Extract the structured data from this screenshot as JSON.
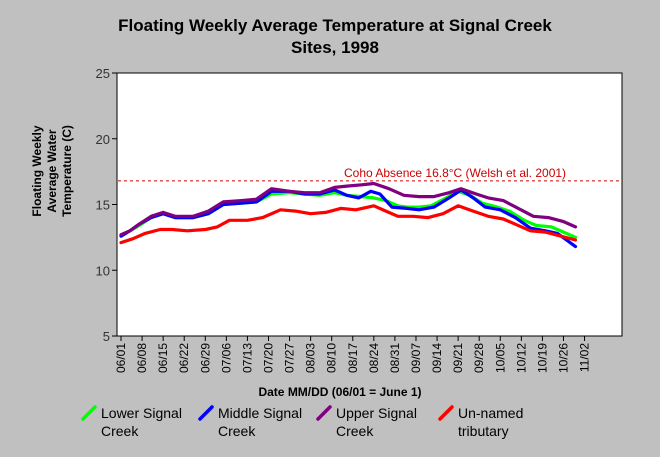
{
  "chart_data": {
    "type": "line",
    "title_lines": [
      "Floating Weekly Average Temperature at Signal Creek",
      "Sites, 1998"
    ],
    "xlabel": "Date MM/DD (06/01 = June 1)",
    "ylabel_lines": [
      "Floating Weekly",
      "Average Water",
      "Temperature (C)"
    ],
    "ylim": [
      5,
      25
    ],
    "yticks": [
      5,
      10,
      15,
      20,
      25
    ],
    "xtick_labels": [
      "06/01",
      "06/08",
      "06/15",
      "06/22",
      "06/29",
      "07/06",
      "07/13",
      "07/20",
      "07/27",
      "08/03",
      "08/10",
      "08/17",
      "08/24",
      "08/31",
      "09/07",
      "09/14",
      "09/21",
      "09/28",
      "10/05",
      "10/12",
      "10/19",
      "10/26",
      "11/02"
    ],
    "x_unit": "days since 06/01",
    "reference_line": {
      "value": 16.8,
      "label": "Coho Absence 16.8°C (Welsh et al. 2001)",
      "color": "#cc0000"
    },
    "series": [
      {
        "name": "Lower Signal Creek",
        "color": "#00ff00",
        "points": [
          [
            0,
            12.6
          ],
          [
            3,
            13.0
          ],
          [
            6,
            13.4
          ],
          [
            10,
            14.0
          ],
          [
            14,
            14.3
          ],
          [
            18,
            14.0
          ],
          [
            24,
            14.0
          ],
          [
            29,
            14.3
          ],
          [
            34,
            15.0
          ],
          [
            40,
            15.1
          ],
          [
            45,
            15.2
          ],
          [
            50,
            15.8
          ],
          [
            56,
            15.9
          ],
          [
            61,
            15.8
          ],
          [
            66,
            15.7
          ],
          [
            71,
            15.9
          ],
          [
            75,
            15.7
          ],
          [
            80,
            15.6
          ],
          [
            84,
            15.5
          ],
          [
            88,
            15.3
          ],
          [
            92,
            14.9
          ],
          [
            95,
            14.8
          ],
          [
            99,
            14.8
          ],
          [
            103,
            14.9
          ],
          [
            108,
            15.5
          ],
          [
            112,
            16.0
          ],
          [
            116,
            15.7
          ],
          [
            120,
            15.1
          ],
          [
            125,
            14.8
          ],
          [
            129,
            14.5
          ],
          [
            134,
            13.8
          ],
          [
            138,
            13.4
          ],
          [
            143,
            13.3
          ],
          [
            147,
            12.9
          ],
          [
            151,
            12.5
          ]
        ]
      },
      {
        "name": "Middle Signal Creek",
        "color": "#0000ff",
        "points": [
          [
            0,
            12.6
          ],
          [
            3,
            13.0
          ],
          [
            6,
            13.5
          ],
          [
            10,
            14.0
          ],
          [
            14,
            14.3
          ],
          [
            18,
            14.0
          ],
          [
            24,
            14.0
          ],
          [
            29,
            14.3
          ],
          [
            34,
            15.0
          ],
          [
            40,
            15.1
          ],
          [
            45,
            15.2
          ],
          [
            50,
            16.0
          ],
          [
            56,
            16.0
          ],
          [
            61,
            15.8
          ],
          [
            66,
            15.8
          ],
          [
            71,
            16.1
          ],
          [
            75,
            15.7
          ],
          [
            79,
            15.5
          ],
          [
            83,
            16.0
          ],
          [
            86,
            15.8
          ],
          [
            90,
            14.8
          ],
          [
            95,
            14.7
          ],
          [
            99,
            14.6
          ],
          [
            104,
            14.8
          ],
          [
            109,
            15.5
          ],
          [
            113,
            16.1
          ],
          [
            117,
            15.5
          ],
          [
            121,
            14.8
          ],
          [
            126,
            14.6
          ],
          [
            131,
            14.0
          ],
          [
            136,
            13.2
          ],
          [
            141,
            13.0
          ],
          [
            145,
            12.8
          ],
          [
            148,
            12.3
          ],
          [
            151,
            11.8
          ]
        ]
      },
      {
        "name": "Upper Signal Creek",
        "color": "#800080",
        "points": [
          [
            0,
            12.7
          ],
          [
            3,
            13.0
          ],
          [
            6,
            13.5
          ],
          [
            10,
            14.1
          ],
          [
            14,
            14.4
          ],
          [
            18,
            14.1
          ],
          [
            24,
            14.1
          ],
          [
            29,
            14.5
          ],
          [
            34,
            15.2
          ],
          [
            40,
            15.3
          ],
          [
            45,
            15.4
          ],
          [
            50,
            16.2
          ],
          [
            56,
            16.0
          ],
          [
            61,
            15.9
          ],
          [
            66,
            15.9
          ],
          [
            71,
            16.3
          ],
          [
            75,
            16.4
          ],
          [
            80,
            16.5
          ],
          [
            84,
            16.6
          ],
          [
            89,
            16.2
          ],
          [
            94,
            15.7
          ],
          [
            99,
            15.6
          ],
          [
            104,
            15.6
          ],
          [
            109,
            15.9
          ],
          [
            113,
            16.2
          ],
          [
            118,
            15.8
          ],
          [
            122,
            15.5
          ],
          [
            127,
            15.3
          ],
          [
            132,
            14.7
          ],
          [
            137,
            14.1
          ],
          [
            142,
            14.0
          ],
          [
            147,
            13.7
          ],
          [
            151,
            13.3
          ]
        ]
      },
      {
        "name": "Un-named tributary",
        "color": "#ff0000",
        "points": [
          [
            0,
            12.1
          ],
          [
            4,
            12.4
          ],
          [
            8,
            12.8
          ],
          [
            13,
            13.1
          ],
          [
            17,
            13.1
          ],
          [
            22,
            13.0
          ],
          [
            28,
            13.1
          ],
          [
            32,
            13.3
          ],
          [
            36,
            13.8
          ],
          [
            42,
            13.8
          ],
          [
            47,
            14.0
          ],
          [
            53,
            14.6
          ],
          [
            58,
            14.5
          ],
          [
            63,
            14.3
          ],
          [
            68,
            14.4
          ],
          [
            73,
            14.7
          ],
          [
            78,
            14.6
          ],
          [
            84,
            14.9
          ],
          [
            88,
            14.5
          ],
          [
            92,
            14.1
          ],
          [
            97,
            14.1
          ],
          [
            102,
            14.0
          ],
          [
            107,
            14.3
          ],
          [
            112,
            14.9
          ],
          [
            117,
            14.5
          ],
          [
            122,
            14.1
          ],
          [
            127,
            13.9
          ],
          [
            131,
            13.5
          ],
          [
            136,
            13.0
          ],
          [
            141,
            12.9
          ],
          [
            146,
            12.6
          ],
          [
            151,
            12.3
          ]
        ]
      }
    ],
    "legend_position": "bottom",
    "grid": false
  },
  "legend": [
    {
      "line1": "Lower Signal",
      "line2": "Creek",
      "color": "#00ff00"
    },
    {
      "line1": "Middle Signal",
      "line2": "Creek",
      "color": "#0000ff"
    },
    {
      "line1": "Upper Signal",
      "line2": "Creek",
      "color": "#800080"
    },
    {
      "line1": "Un-named",
      "line2": "tributary",
      "color": "#ff0000"
    }
  ]
}
